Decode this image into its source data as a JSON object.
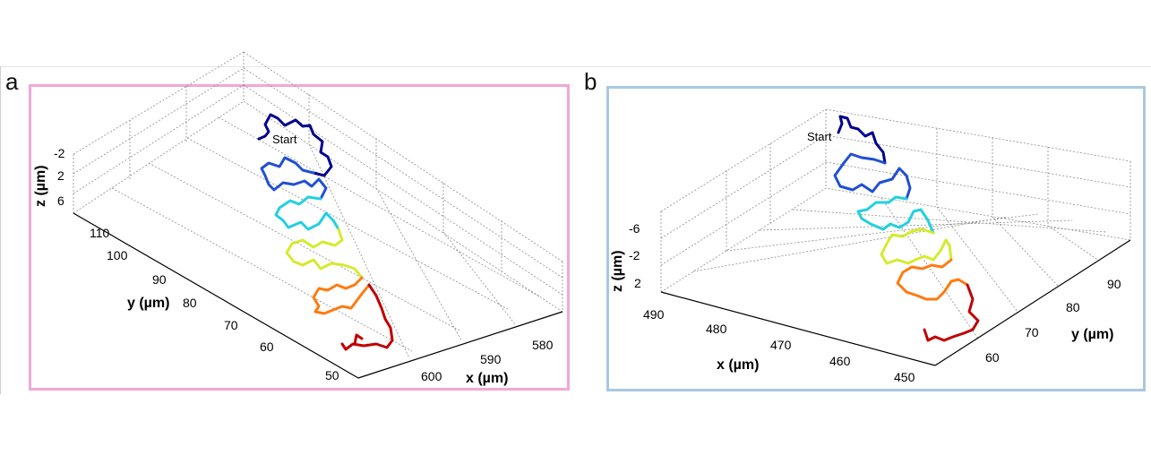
{
  "colors": {
    "panel_a_border": "#f0a8d8",
    "panel_b_border": "#a8c8e0",
    "grid": "#8c8c8c"
  },
  "chart_data": [
    {
      "type": "line",
      "panel_label": "a",
      "view": "3d",
      "grid": true,
      "colormap": "jet",
      "start_label": "Start",
      "xlabel": "x (µm)",
      "ylabel": "y (µm)",
      "zlabel": "z (µm)",
      "xticks": [
        "580",
        "590",
        "600"
      ],
      "yticks": [
        "50",
        "60",
        "70",
        "80",
        "90",
        "100",
        "110"
      ],
      "zticks": [
        "-2",
        "2",
        "6"
      ],
      "series": [
        {
          "color": "#00008f",
          "x": [
            588,
            592,
            596,
            598,
            595,
            596
          ],
          "y": [
            112,
            108,
            103,
            106,
            110,
            112
          ],
          "z": [
            -2,
            -3,
            -1,
            -2,
            -3,
            -2
          ]
        },
        {
          "color": "#1f4fd6",
          "x": [
            594,
            590,
            594,
            598,
            596
          ],
          "y": [
            98,
            96,
            94,
            97,
            99
          ],
          "z": [
            0,
            1,
            0,
            -1,
            0
          ]
        },
        {
          "color": "#22d0e0",
          "x": [
            592,
            590,
            594,
            597,
            594
          ],
          "y": [
            86,
            84,
            82,
            85,
            87
          ],
          "z": [
            1,
            2,
            1,
            0,
            1
          ]
        },
        {
          "color": "#d6ea2c",
          "x": [
            591,
            589,
            593,
            596,
            593
          ],
          "y": [
            76,
            74,
            72,
            75,
            77
          ],
          "z": [
            2,
            3,
            2,
            1,
            2
          ]
        },
        {
          "color": "#ff7a10",
          "x": [
            590,
            588,
            592,
            595,
            592
          ],
          "y": [
            65,
            63,
            62,
            64,
            66
          ],
          "z": [
            3,
            4,
            3,
            2,
            3
          ]
        },
        {
          "color": "#c00000",
          "x": [
            591,
            593,
            590,
            587
          ],
          "y": [
            56,
            52,
            50,
            53
          ],
          "z": [
            4,
            5,
            4,
            3
          ]
        }
      ]
    },
    {
      "type": "line",
      "panel_label": "b",
      "view": "3d",
      "grid": true,
      "colormap": "jet",
      "start_label": "Start",
      "xlabel": "x (µm)",
      "ylabel": "y (µm)",
      "zlabel": "z (µm)",
      "xticks": [
        "450",
        "460",
        "470",
        "480",
        "490"
      ],
      "yticks": [
        "60",
        "70",
        "80",
        "90"
      ],
      "zticks": [
        "-6",
        "-2",
        "2"
      ],
      "series": [
        {
          "color": "#00008f",
          "x": [
            482,
            478,
            474,
            476,
            480
          ],
          "y": [
            92,
            90,
            86,
            83,
            88
          ],
          "z": [
            -6,
            -5,
            -4,
            -5,
            -6
          ]
        },
        {
          "color": "#1f4fd6",
          "x": [
            480,
            476,
            472,
            475,
            479
          ],
          "y": [
            84,
            82,
            79,
            77,
            81
          ],
          "z": [
            -5,
            -4,
            -3,
            -4,
            -5
          ]
        },
        {
          "color": "#22d0e0",
          "x": [
            478,
            474,
            470,
            473,
            477
          ],
          "y": [
            77,
            75,
            72,
            70,
            74
          ],
          "z": [
            -4,
            -3,
            -2,
            -3,
            -4
          ]
        },
        {
          "color": "#d6ea2c",
          "x": [
            476,
            472,
            468,
            471,
            475
          ],
          "y": [
            70,
            68,
            65,
            63,
            67
          ],
          "z": [
            -3,
            -2,
            -1,
            -2,
            -3
          ]
        },
        {
          "color": "#ff7a10",
          "x": [
            474,
            470,
            466,
            469,
            473
          ],
          "y": [
            64,
            62,
            59,
            57,
            61
          ],
          "z": [
            -2,
            -1,
            0,
            -1,
            -2
          ]
        },
        {
          "color": "#c00000",
          "x": [
            471,
            467,
            463,
            466
          ],
          "y": [
            58,
            56,
            54,
            57
          ],
          "z": [
            -1,
            0,
            1,
            0
          ]
        }
      ]
    }
  ]
}
